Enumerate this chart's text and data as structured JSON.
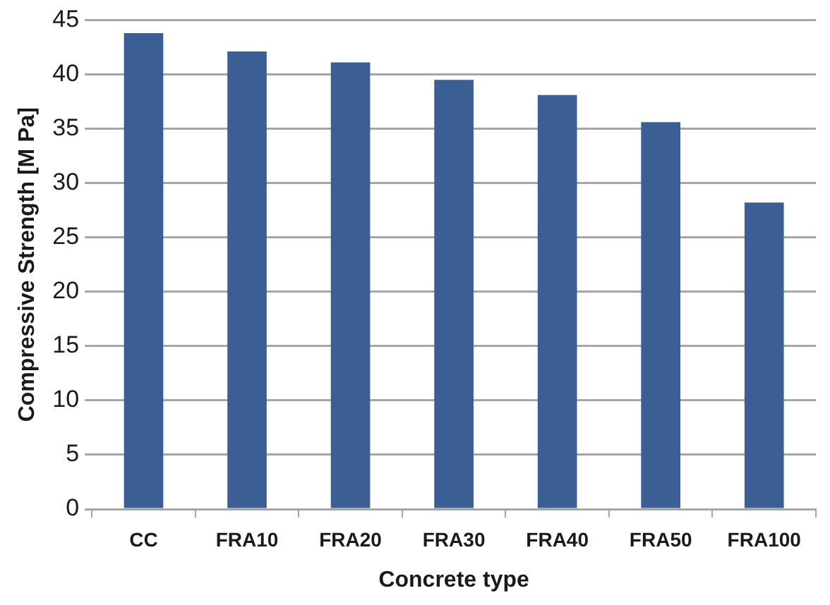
{
  "chart_data": {
    "type": "bar",
    "xlabel": "Concrete type",
    "ylabel": "Compressive Strength [M Pa]",
    "categories": [
      "CC",
      "FRA10",
      "FRA20",
      "FRA30",
      "FRA40",
      "FRA50",
      "FRA100"
    ],
    "values": [
      43.8,
      42.1,
      41.1,
      39.5,
      38.1,
      35.6,
      28.2
    ],
    "color": "#3b5f95",
    "ylim": [
      0,
      45
    ],
    "yticks": [
      0,
      5,
      10,
      15,
      20,
      25,
      30,
      35,
      40,
      45
    ],
    "grid": "y"
  }
}
